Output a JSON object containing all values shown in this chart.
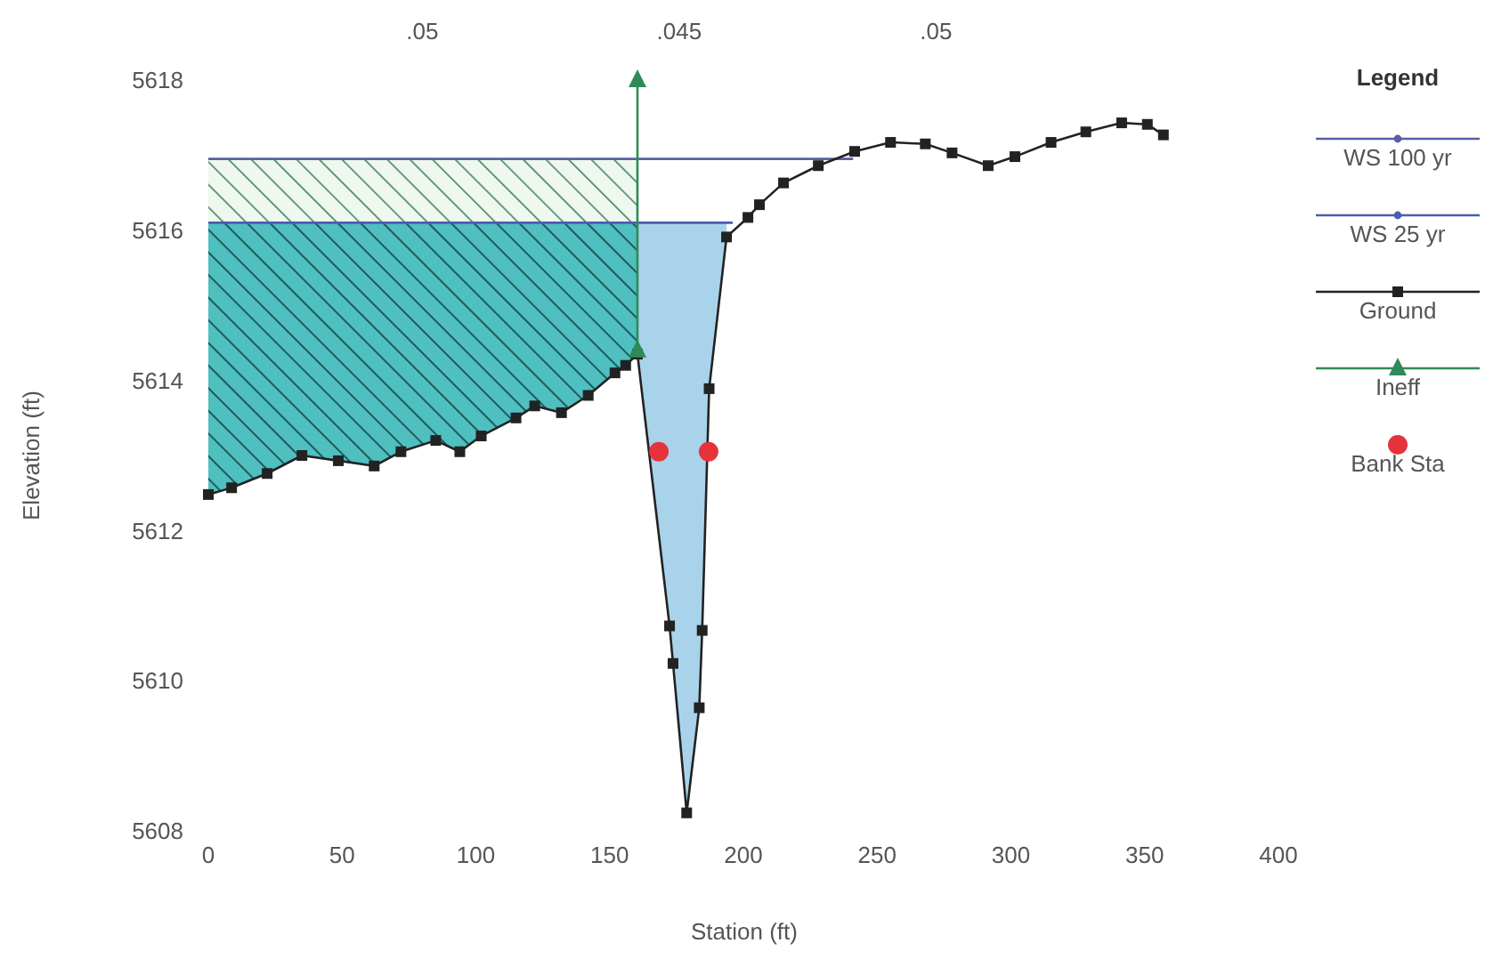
{
  "chart_data": {
    "type": "line",
    "xlabel": "Station (ft)",
    "ylabel": "Elevation (ft)",
    "legend_title": "Legend",
    "xlim": [
      0,
      400
    ],
    "xticks": [
      0,
      50,
      100,
      150,
      200,
      250,
      300,
      350,
      400
    ],
    "ylim": [
      5608,
      5618
    ],
    "yticks": [
      5608,
      5610,
      5612,
      5614,
      5616,
      5618
    ],
    "grid": false,
    "legend": "right",
    "annotations": [
      ".05",
      ".045",
      ".05"
    ],
    "series": [
      {
        "name": "WS 100 yr",
        "color": "#5a5fa8",
        "marker": "none",
        "x": [
          0,
          241
        ],
        "values": [
          5616.95,
          5616.95
        ]
      },
      {
        "name": "WS 25 yr",
        "color": "#4a5db0",
        "marker": "none",
        "x": [
          0,
          196
        ],
        "values": [
          5616.1,
          5616.1
        ]
      },
      {
        "name": "Ground",
        "color": "#222222",
        "marker": "square",
        "x": [
          0,
          8.7,
          22,
          35,
          48.6,
          62,
          72,
          85,
          94,
          102,
          115,
          122,
          132,
          142,
          152,
          156,
          160.4,
          172.4,
          173.7,
          178.8,
          183.5,
          184.6,
          187.2,
          193.7,
          201.7,
          206,
          215,
          228,
          241.6,
          255,
          268,
          278,
          291.5,
          301.5,
          315,
          328,
          341.4,
          351,
          357
        ],
        "values": [
          5612.48,
          5612.57,
          5612.76,
          5613,
          5612.93,
          5612.86,
          5613.05,
          5613.2,
          5613.05,
          5613.26,
          5613.5,
          5613.66,
          5613.57,
          5613.8,
          5614.1,
          5614.2,
          5614.35,
          5610.73,
          5610.23,
          5608.24,
          5609.64,
          5610.67,
          5613.89,
          5615.91,
          5616.17,
          5616.34,
          5616.63,
          5616.86,
          5617.05,
          5617.17,
          5617.15,
          5617.03,
          5616.86,
          5616.98,
          5617.17,
          5617.31,
          5617.43,
          5617.41,
          5617.27
        ]
      },
      {
        "name": "Ineff",
        "color": "#2e8b57",
        "marker": "triangle",
        "x": [
          160.4,
          160.4
        ],
        "values": [
          5614.4,
          5618
        ]
      },
      {
        "name": "Bank Sta",
        "type": "scatter",
        "color": "#e5323b",
        "marker": "circle",
        "x": [
          168.4,
          187
        ],
        "values": [
          5613.05,
          5613.05
        ]
      }
    ]
  }
}
